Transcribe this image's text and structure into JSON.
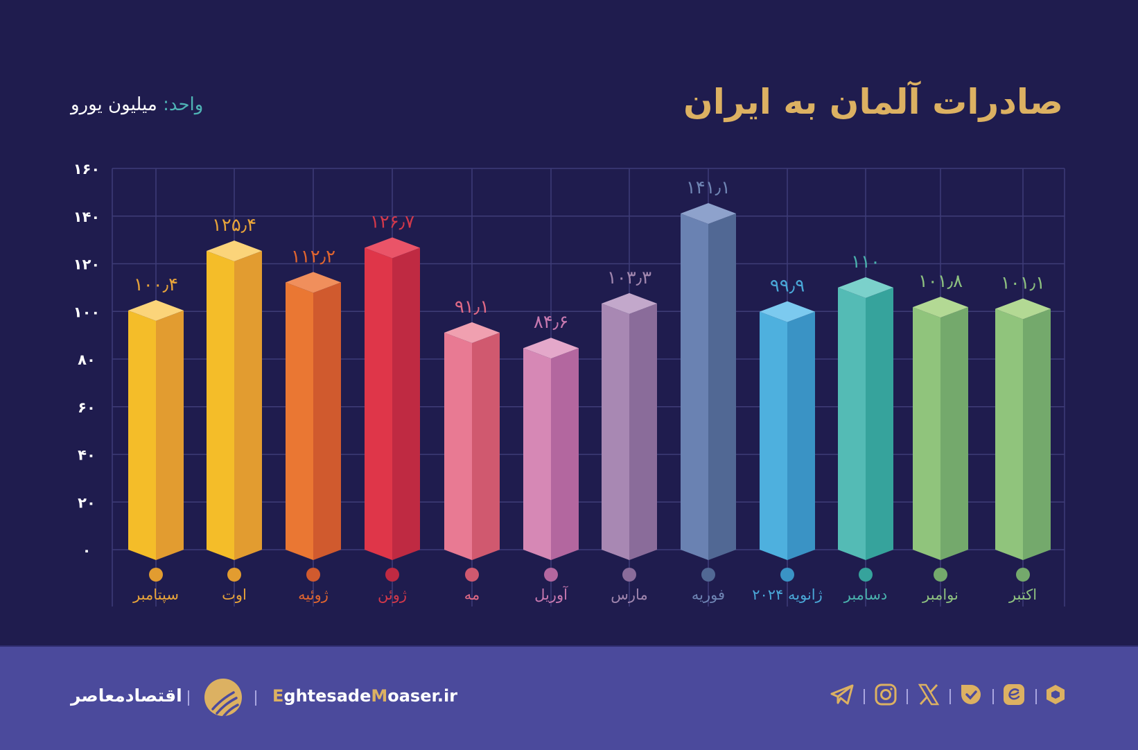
{
  "header": {
    "title": "صادرات آلمان به ایران",
    "unit_label": "واحد:",
    "unit_value": "میلیون یورو"
  },
  "chart_data": {
    "type": "bar",
    "title": "صادرات آلمان به ایران",
    "ylabel": "میلیون یورو",
    "xlabel": "",
    "ylim": [
      0,
      160
    ],
    "yticks": [
      0,
      20,
      40,
      60,
      80,
      100,
      120,
      140,
      160
    ],
    "ytick_labels": [
      "۰",
      "۲۰",
      "۴۰",
      "۶۰",
      "۸۰",
      "۱۰۰",
      "۱۲۰",
      "۱۴۰",
      "۱۶۰"
    ],
    "grid": true,
    "legend": "none",
    "categories": [
      "سپتامبر",
      "اوت",
      "ژوئیه",
      "ژوئن",
      "مه",
      "آوریل",
      "مارس",
      "فوریه",
      "ژانویه ۲۰۲۴",
      "دسامبر",
      "نوامبر",
      "اکتبر"
    ],
    "values": [
      100.4,
      125.4,
      112.2,
      126.7,
      91.1,
      84.6,
      103.3,
      141.1,
      99.9,
      110,
      101.8,
      101.1
    ],
    "value_labels": [
      "۱۰۰٫۴",
      "۱۲۵٫۴",
      "۱۱۲٫۲",
      "۱۲۶٫۷",
      "۹۱٫۱",
      "۸۴٫۶",
      "۱۰۳٫۳",
      "۱۴۱٫۱",
      "۹۹٫۹",
      "۱۱۰",
      "۱۰۱٫۸",
      "۱۰۱٫۱"
    ],
    "colors": [
      {
        "front": "#f4bd29",
        "side": "#e29c30",
        "top": "#fbd47a",
        "label": "#e8a43a"
      },
      {
        "front": "#f4bd29",
        "side": "#e29c30",
        "top": "#fbd47a",
        "label": "#e8a43a"
      },
      {
        "front": "#ea7733",
        "side": "#d05a2e",
        "top": "#f08f5c",
        "label": "#e0652f"
      },
      {
        "front": "#df3649",
        "side": "#bf2a42",
        "top": "#ea5468",
        "label": "#d3384a"
      },
      {
        "front": "#e87a93",
        "side": "#d0596f",
        "top": "#f0a0b0",
        "label": "#e06a86"
      },
      {
        "front": "#d688b5",
        "side": "#b3679f",
        "top": "#e4a8ca",
        "label": "#c879b0"
      },
      {
        "front": "#a888b3",
        "side": "#8a6c9a",
        "top": "#c3a8cb",
        "label": "#a086ae"
      },
      {
        "front": "#6a82b2",
        "side": "#516894",
        "top": "#8ea2cc",
        "label": "#6f85b4"
      },
      {
        "front": "#4eb0de",
        "side": "#3a93c5",
        "top": "#7ccaef",
        "label": "#4aa8d8"
      },
      {
        "front": "#54bbb5",
        "side": "#36a39c",
        "top": "#7bd1cb",
        "label": "#4ab2ad"
      },
      {
        "front": "#90c47c",
        "side": "#74a96c",
        "top": "#b3d994",
        "label": "#8ec180"
      },
      {
        "front": "#90c47c",
        "side": "#74a96c",
        "top": "#b3d994",
        "label": "#8ec180"
      }
    ]
  },
  "footer": {
    "brand_name": "اقتصادمعاصر",
    "site_prefix": "E",
    "site_mid": "ghtesade",
    "site_m": "M",
    "site_suffix": "oaser.ir",
    "social_icons": [
      "telegram-icon",
      "instagram-icon",
      "x-icon",
      "bale-icon",
      "eitaa-icon",
      "rubika-icon"
    ]
  }
}
